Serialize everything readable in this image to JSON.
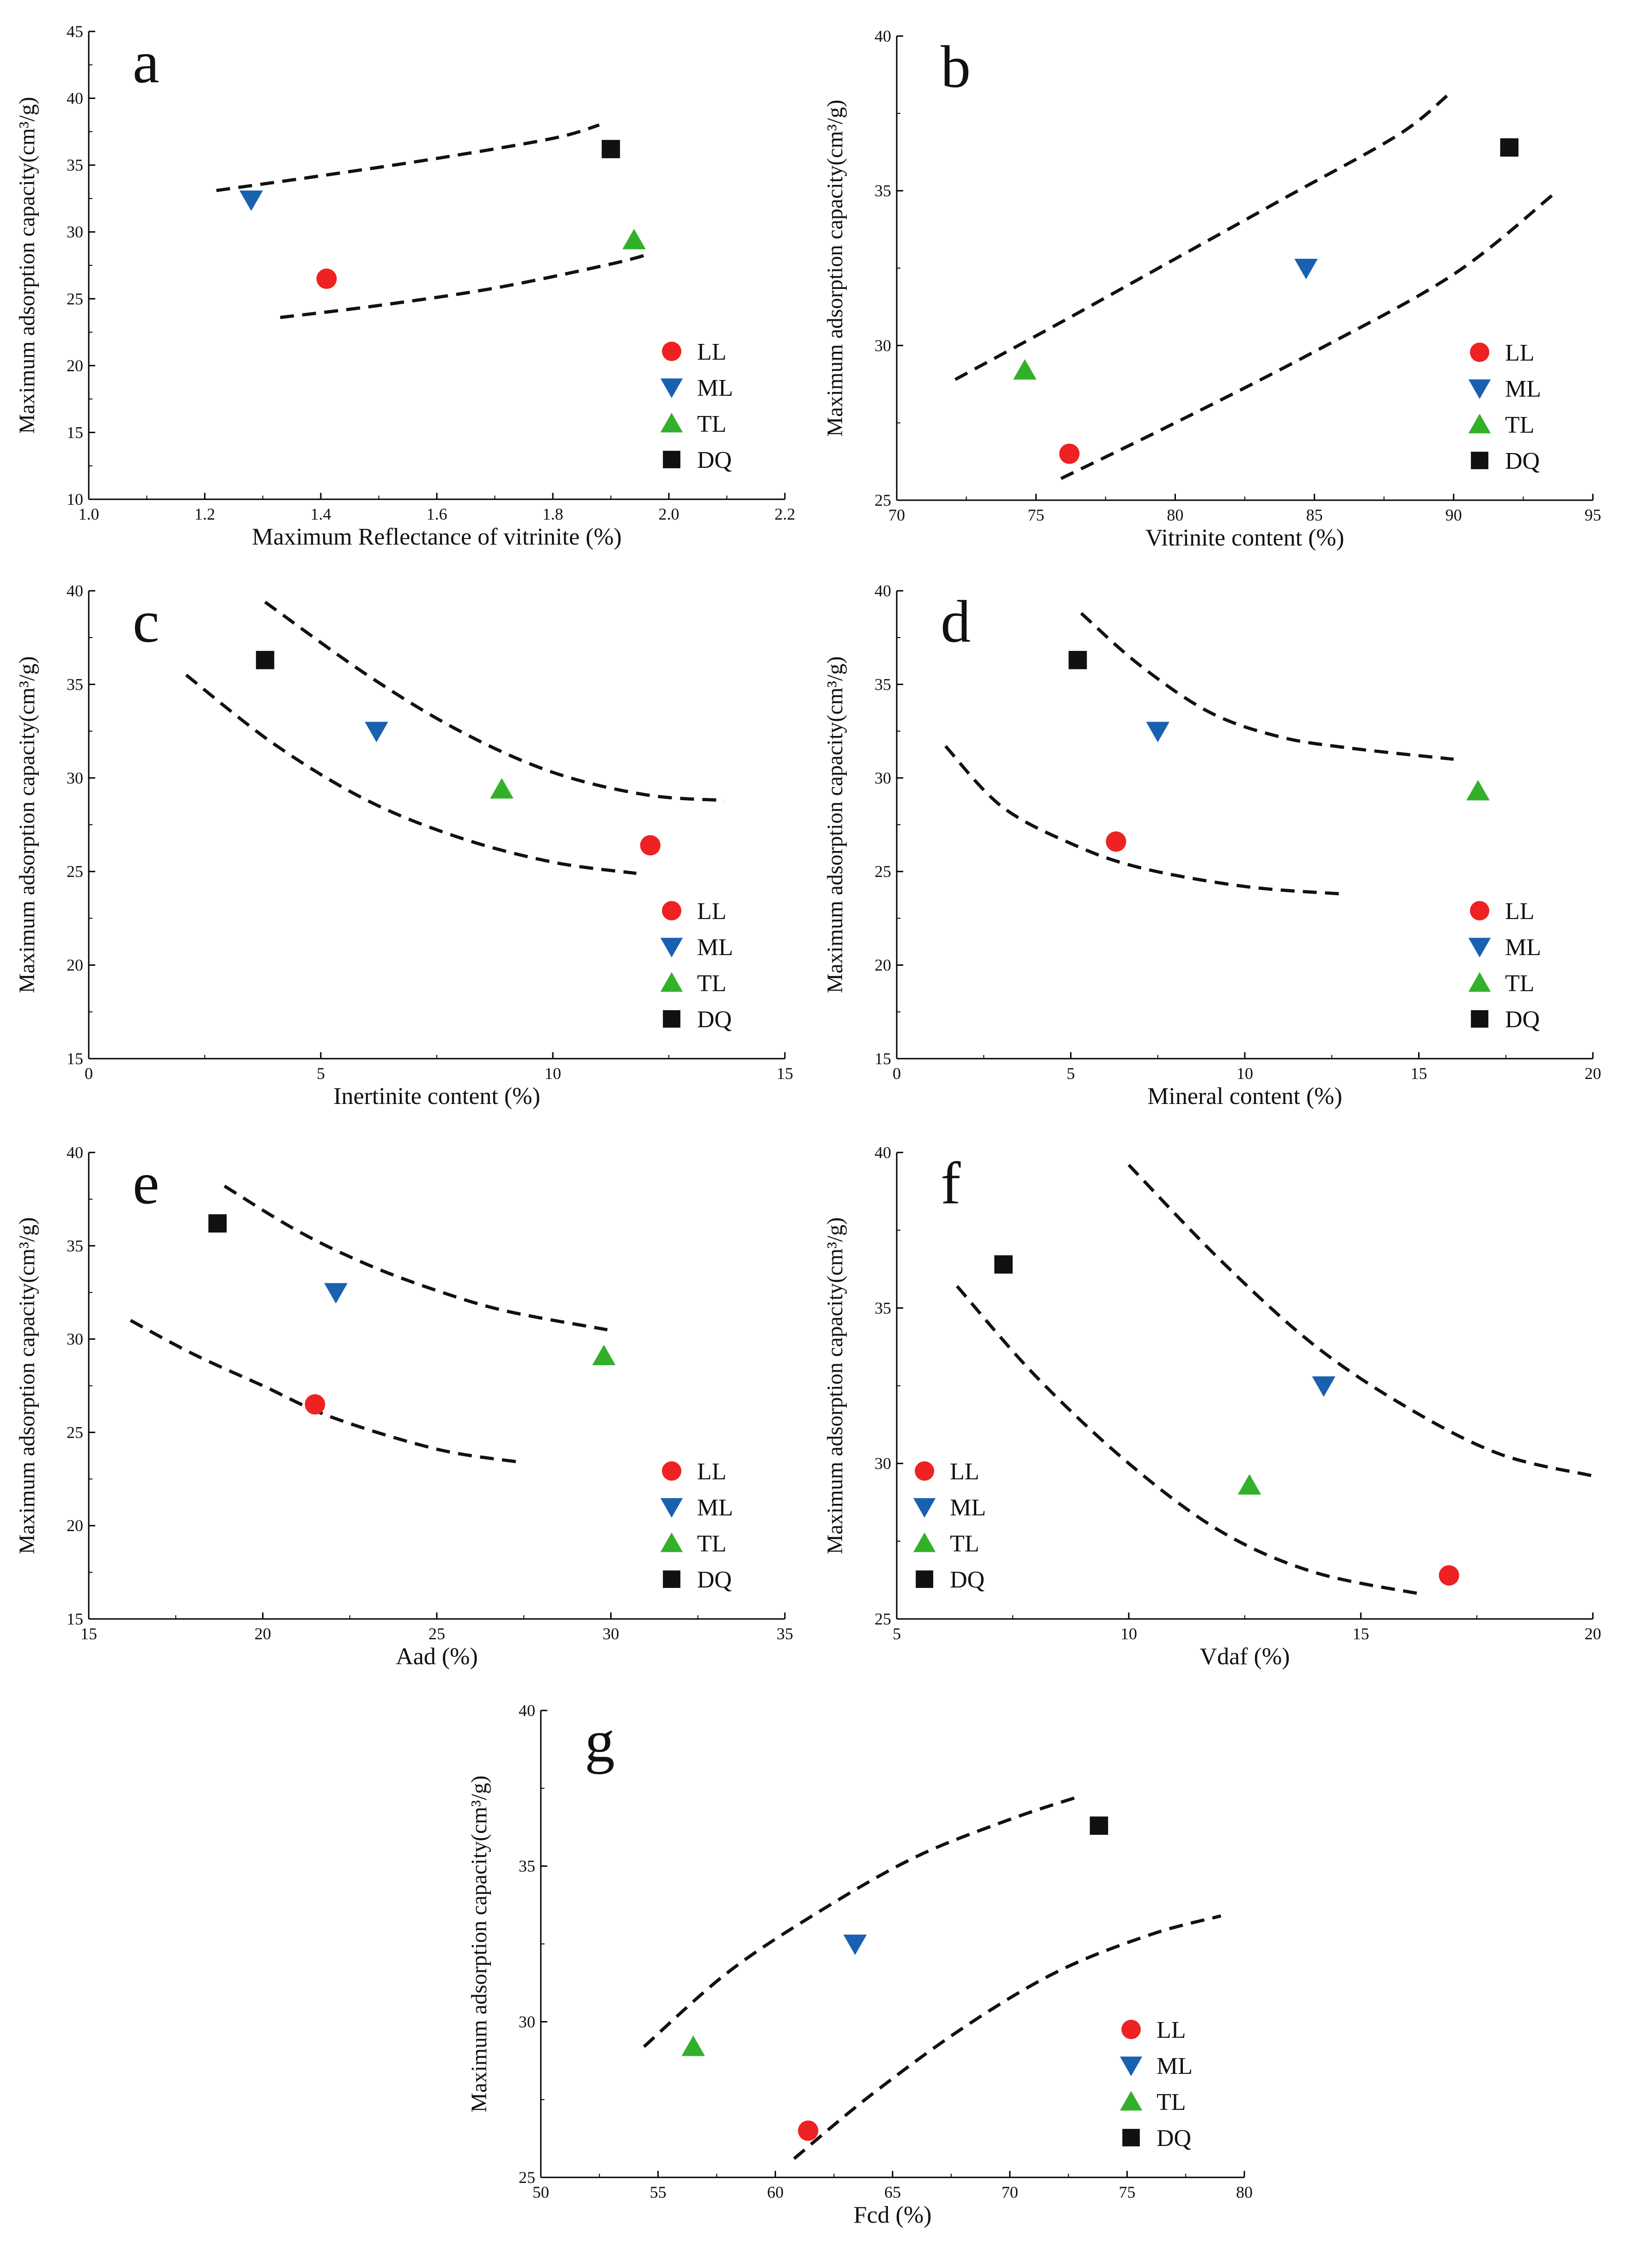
{
  "figure": {
    "series_styles": {
      "LL": {
        "marker": "circle",
        "color": "#ee2222"
      },
      "ML": {
        "marker": "triangle-down",
        "color": "#1a60b0"
      },
      "TL": {
        "marker": "triangle-up",
        "color": "#33b02a"
      },
      "DQ": {
        "marker": "square",
        "color": "#111111"
      }
    },
    "bound_color": "#111111"
  },
  "chart_data": [
    {
      "type": "scatter",
      "panel": "a",
      "xlabel": "Maximum Reflectance of vitrinite (%)",
      "ylabel": "Maximum adsorption capacity(cm³/g)",
      "xlim": [
        1.0,
        2.2
      ],
      "ylim": [
        10,
        45
      ],
      "xticks": [
        "1.0",
        "1.2",
        "1.4",
        "1.6",
        "1.8",
        "2.0",
        "2.2"
      ],
      "yticks": [
        "10",
        "15",
        "20",
        "25",
        "30",
        "35",
        "40",
        "45"
      ],
      "series": [
        {
          "name": "LL",
          "x": [
            1.41
          ],
          "y": [
            26.5
          ]
        },
        {
          "name": "ML",
          "x": [
            1.28
          ],
          "y": [
            32.4
          ]
        },
        {
          "name": "TL",
          "x": [
            1.94
          ],
          "y": [
            29.4
          ]
        },
        {
          "name": "DQ",
          "x": [
            1.9
          ],
          "y": [
            36.2
          ]
        }
      ],
      "bounds": [
        [
          [
            1.22,
            33.1
          ],
          [
            1.4,
            34.2
          ],
          [
            1.6,
            35.5
          ],
          [
            1.8,
            37.0
          ],
          [
            1.88,
            38.0
          ]
        ],
        [
          [
            1.33,
            23.6
          ],
          [
            1.5,
            24.5
          ],
          [
            1.7,
            25.8
          ],
          [
            1.9,
            27.6
          ],
          [
            1.97,
            28.4
          ]
        ]
      ],
      "legend_position": "bottom-right"
    },
    {
      "type": "scatter",
      "panel": "b",
      "xlabel": "Vitrinite content (%)",
      "ylabel": "Maximum adsorption capacity(cm³/g)",
      "xlim": [
        70,
        95
      ],
      "ylim": [
        25,
        40
      ],
      "xticks": [
        "70",
        "75",
        "80",
        "85",
        "90",
        "95"
      ],
      "yticks": [
        "25",
        "30",
        "35",
        "40"
      ],
      "series": [
        {
          "name": "LL",
          "x": [
            76.2
          ],
          "y": [
            26.5
          ]
        },
        {
          "name": "ML",
          "x": [
            84.7
          ],
          "y": [
            32.5
          ]
        },
        {
          "name": "TL",
          "x": [
            74.6
          ],
          "y": [
            29.2
          ]
        },
        {
          "name": "DQ",
          "x": [
            92.0
          ],
          "y": [
            36.4
          ]
        }
      ],
      "bounds": [
        [
          [
            72.1,
            28.9
          ],
          [
            76,
            30.8
          ],
          [
            80,
            32.8
          ],
          [
            84,
            34.8
          ],
          [
            88,
            36.8
          ],
          [
            89.8,
            38.1
          ]
        ],
        [
          [
            75.9,
            25.7
          ],
          [
            80,
            27.5
          ],
          [
            85,
            29.8
          ],
          [
            90,
            32.3
          ],
          [
            93.6,
            34.9
          ]
        ]
      ],
      "legend_position": "bottom-right"
    },
    {
      "type": "scatter",
      "panel": "c",
      "xlabel": "Inertinite content (%)",
      "ylabel": "Maximum adsorption capacity(cm³/g)",
      "xlim": [
        0,
        15
      ],
      "ylim": [
        15,
        40
      ],
      "xticks": [
        "0",
        "5",
        "10",
        "15"
      ],
      "yticks": [
        "15",
        "20",
        "25",
        "30",
        "35",
        "40"
      ],
      "series": [
        {
          "name": "LL",
          "x": [
            12.1
          ],
          "y": [
            26.4
          ]
        },
        {
          "name": "ML",
          "x": [
            6.2
          ],
          "y": [
            32.5
          ]
        },
        {
          "name": "TL",
          "x": [
            8.9
          ],
          "y": [
            29.4
          ]
        },
        {
          "name": "DQ",
          "x": [
            3.8
          ],
          "y": [
            36.3
          ]
        }
      ],
      "bounds": [
        [
          [
            3.8,
            39.4
          ],
          [
            6,
            35.5
          ],
          [
            8,
            32.5
          ],
          [
            10,
            30.3
          ],
          [
            12,
            29.1
          ],
          [
            13.7,
            28.8
          ]
        ],
        [
          [
            2.1,
            35.5
          ],
          [
            4,
            31.8
          ],
          [
            6,
            28.8
          ],
          [
            8,
            26.8
          ],
          [
            10,
            25.5
          ],
          [
            11.8,
            24.9
          ]
        ]
      ],
      "legend_position": "bottom-right"
    },
    {
      "type": "scatter",
      "panel": "d",
      "xlabel": "Mineral content (%)",
      "ylabel": "Maximum adsorption capacity(cm³/g)",
      "xlim": [
        0,
        20
      ],
      "ylim": [
        15,
        40
      ],
      "xticks": [
        "0",
        "5",
        "10",
        "15",
        "20"
      ],
      "yticks": [
        "15",
        "20",
        "25",
        "30",
        "35",
        "40"
      ],
      "series": [
        {
          "name": "LL",
          "x": [
            6.3
          ],
          "y": [
            26.6
          ]
        },
        {
          "name": "ML",
          "x": [
            7.5
          ],
          "y": [
            32.5
          ]
        },
        {
          "name": "TL",
          "x": [
            16.7
          ],
          "y": [
            29.3
          ]
        },
        {
          "name": "DQ",
          "x": [
            5.2
          ],
          "y": [
            36.3
          ]
        }
      ],
      "bounds": [
        [
          [
            5.3,
            38.8
          ],
          [
            7,
            36.0
          ],
          [
            9,
            33.5
          ],
          [
            11,
            32.2
          ],
          [
            13,
            31.6
          ],
          [
            16.0,
            31.0
          ]
        ],
        [
          [
            1.4,
            31.7
          ],
          [
            3,
            28.5
          ],
          [
            5,
            26.5
          ],
          [
            7,
            25.2
          ],
          [
            10,
            24.2
          ],
          [
            12.8,
            23.8
          ]
        ]
      ],
      "legend_position": "bottom-right"
    },
    {
      "type": "scatter",
      "panel": "e",
      "xlabel": "Aad (%)",
      "ylabel": "Maximum adsorption capacity(cm³/g)",
      "xlim": [
        15,
        35
      ],
      "ylim": [
        15,
        40
      ],
      "xticks": [
        "15",
        "20",
        "25",
        "30",
        "35"
      ],
      "yticks": [
        "15",
        "20",
        "25",
        "30",
        "35",
        "40"
      ],
      "series": [
        {
          "name": "LL",
          "x": [
            21.5
          ],
          "y": [
            26.5
          ]
        },
        {
          "name": "ML",
          "x": [
            22.1
          ],
          "y": [
            32.5
          ]
        },
        {
          "name": "TL",
          "x": [
            29.8
          ],
          "y": [
            29.1
          ]
        },
        {
          "name": "DQ",
          "x": [
            18.7
          ],
          "y": [
            36.2
          ]
        }
      ],
      "bounds": [
        [
          [
            18.9,
            38.2
          ],
          [
            21,
            35.8
          ],
          [
            23,
            34.0
          ],
          [
            25,
            32.6
          ],
          [
            27,
            31.5
          ],
          [
            29.9,
            30.5
          ]
        ],
        [
          [
            16.2,
            31.0
          ],
          [
            18,
            29.2
          ],
          [
            20,
            27.5
          ],
          [
            22,
            25.8
          ],
          [
            25,
            24.1
          ],
          [
            27.4,
            23.4
          ]
        ]
      ],
      "legend_position": "bottom-right"
    },
    {
      "type": "scatter",
      "panel": "f",
      "xlabel": "Vdaf (%)",
      "ylabel": "Maximum adsorption capacity(cm³/g)",
      "xlim": [
        5,
        20
      ],
      "ylim": [
        25,
        40
      ],
      "xticks": [
        "5",
        "10",
        "15",
        "20"
      ],
      "yticks": [
        "25",
        "30",
        "35",
        "40"
      ],
      "series": [
        {
          "name": "LL",
          "x": [
            16.9
          ],
          "y": [
            26.4
          ]
        },
        {
          "name": "ML",
          "x": [
            14.2
          ],
          "y": [
            32.5
          ]
        },
        {
          "name": "TL",
          "x": [
            12.6
          ],
          "y": [
            29.3
          ]
        },
        {
          "name": "DQ",
          "x": [
            7.3
          ],
          "y": [
            36.4
          ]
        }
      ],
      "bounds": [
        [
          [
            10.0,
            39.6
          ],
          [
            12,
            36.5
          ],
          [
            14,
            33.8
          ],
          [
            16,
            31.8
          ],
          [
            18,
            30.3
          ],
          [
            20,
            29.6
          ]
        ],
        [
          [
            6.3,
            35.7
          ],
          [
            8,
            32.8
          ],
          [
            10,
            30.0
          ],
          [
            12,
            27.8
          ],
          [
            14,
            26.5
          ],
          [
            16.3,
            25.8
          ]
        ]
      ],
      "legend_position": "bottom-left"
    },
    {
      "type": "scatter",
      "panel": "g",
      "xlabel": "Fcd (%)",
      "ylabel": "Maximum adsorption capacity(cm³/g)",
      "xlim": [
        50,
        80
      ],
      "ylim": [
        25,
        40
      ],
      "xticks": [
        "50",
        "55",
        "60",
        "65",
        "70",
        "75",
        "80"
      ],
      "yticks": [
        "25",
        "30",
        "35",
        "40"
      ],
      "series": [
        {
          "name": "LL",
          "x": [
            61.4
          ],
          "y": [
            26.5
          ]
        },
        {
          "name": "ML",
          "x": [
            63.4
          ],
          "y": [
            32.5
          ]
        },
        {
          "name": "TL",
          "x": [
            56.5
          ],
          "y": [
            29.2
          ]
        },
        {
          "name": "DQ",
          "x": [
            73.8
          ],
          "y": [
            36.3
          ]
        }
      ],
      "bounds": [
        [
          [
            54.4,
            29.2
          ],
          [
            58,
            31.6
          ],
          [
            62,
            33.6
          ],
          [
            66,
            35.3
          ],
          [
            70,
            36.5
          ],
          [
            72.8,
            37.2
          ]
        ],
        [
          [
            60.8,
            25.6
          ],
          [
            64,
            27.6
          ],
          [
            68,
            29.8
          ],
          [
            72,
            31.6
          ],
          [
            76,
            32.8
          ],
          [
            79.0,
            33.4
          ]
        ]
      ],
      "legend_position": "bottom-right"
    }
  ]
}
